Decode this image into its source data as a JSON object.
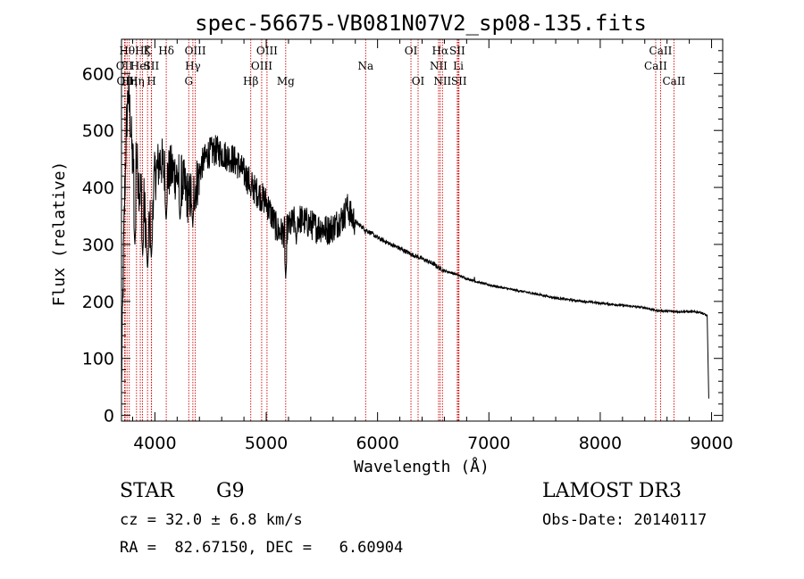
{
  "chart_data": {
    "type": "line",
    "title": "spec-56675-VB081N07V2_sp08-135.fits",
    "xlabel": "Wavelength (Å)",
    "ylabel": "Flux (relative)",
    "xlim": [
      3700,
      9100
    ],
    "ylim": [
      -10,
      660
    ],
    "x_ticks": [
      4000,
      5000,
      6000,
      7000,
      8000,
      9000
    ],
    "y_ticks": [
      0,
      100,
      200,
      300,
      400,
      500,
      600
    ],
    "continuum": [
      [
        3700,
        50
      ],
      [
        3720,
        300
      ],
      [
        3740,
        480
      ],
      [
        3760,
        570
      ],
      [
        3780,
        520
      ],
      [
        3800,
        440
      ],
      [
        3830,
        460
      ],
      [
        3860,
        400
      ],
      [
        3900,
        380
      ],
      [
        3930,
        300
      ],
      [
        3960,
        340
      ],
      [
        4000,
        420
      ],
      [
        4050,
        450
      ],
      [
        4100,
        420
      ],
      [
        4150,
        430
      ],
      [
        4200,
        420
      ],
      [
        4250,
        410
      ],
      [
        4300,
        380
      ],
      [
        4340,
        390
      ],
      [
        4380,
        410
      ],
      [
        4420,
        440
      ],
      [
        4480,
        460
      ],
      [
        4550,
        465
      ],
      [
        4600,
        460
      ],
      [
        4650,
        455
      ],
      [
        4700,
        450
      ],
      [
        4750,
        440
      ],
      [
        4800,
        425
      ],
      [
        4850,
        410
      ],
      [
        4900,
        395
      ],
      [
        4950,
        385
      ],
      [
        5000,
        375
      ],
      [
        5050,
        350
      ],
      [
        5100,
        325
      ],
      [
        5150,
        320
      ],
      [
        5200,
        330
      ],
      [
        5250,
        340
      ],
      [
        5300,
        345
      ],
      [
        5350,
        340
      ],
      [
        5400,
        335
      ],
      [
        5450,
        330
      ],
      [
        5500,
        330
      ],
      [
        5550,
        325
      ],
      [
        5600,
        330
      ],
      [
        5650,
        340
      ],
      [
        5700,
        350
      ],
      [
        5720,
        365
      ],
      [
        5740,
        362
      ],
      [
        5760,
        350
      ],
      [
        5800,
        340
      ],
      [
        5850,
        332
      ],
      [
        5900,
        325
      ],
      [
        6000,
        312
      ],
      [
        6100,
        302
      ],
      [
        6200,
        293
      ],
      [
        6300,
        283
      ],
      [
        6400,
        275
      ],
      [
        6500,
        266
      ],
      [
        6560,
        258
      ],
      [
        6600,
        254
      ],
      [
        6700,
        248
      ],
      [
        6800,
        240
      ],
      [
        6900,
        234
      ],
      [
        7000,
        229
      ],
      [
        7200,
        221
      ],
      [
        7400,
        214
      ],
      [
        7600,
        206
      ],
      [
        7800,
        201
      ],
      [
        8000,
        197
      ],
      [
        8200,
        193
      ],
      [
        8400,
        189
      ],
      [
        8500,
        184
      ],
      [
        8600,
        183
      ],
      [
        8700,
        182
      ],
      [
        8800,
        182
      ],
      [
        8900,
        181
      ],
      [
        8960,
        175
      ],
      [
        8975,
        30
      ]
    ],
    "absorption_dips": [
      [
        3820,
        300
      ],
      [
        3890,
        280
      ],
      [
        3934,
        255
      ],
      [
        3968,
        275
      ],
      [
        4101,
        340
      ],
      [
        4226,
        340
      ],
      [
        4340,
        330
      ],
      [
        4861,
        380
      ],
      [
        5175,
        240
      ],
      [
        5270,
        300
      ],
      [
        5890,
        318
      ]
    ],
    "emission_bumps": [
      [
        5720,
        372
      ],
      [
        6870,
        243
      ]
    ],
    "spectral_lines": [
      {
        "wave": 3727,
        "label": "OII",
        "row": 1
      },
      {
        "wave": 3733,
        "label": "OII",
        "row": 2
      },
      {
        "wave": 3750,
        "label": "Hθ",
        "row": 0
      },
      {
        "wave": 3770,
        "label": "Hη",
        "row": 2
      },
      {
        "wave": 3835,
        "label": "Hη",
        "row": 2
      },
      {
        "wave": 3869,
        "label": "HeI",
        "row": 1
      },
      {
        "wave": 3889,
        "label": "Hζ",
        "row": 0
      },
      {
        "wave": 3934,
        "label": "K",
        "row": 0
      },
      {
        "wave": 3968,
        "label": "SII",
        "row": 1
      },
      {
        "wave": 3970,
        "label": "H",
        "row": 2
      },
      {
        "wave": 4102,
        "label": "Hδ",
        "row": 0
      },
      {
        "wave": 4304,
        "label": "G",
        "row": 2
      },
      {
        "wave": 4341,
        "label": "Hγ",
        "row": 1
      },
      {
        "wave": 4363,
        "label": "OIII",
        "row": 0
      },
      {
        "wave": 4861,
        "label": "Hβ",
        "row": 2
      },
      {
        "wave": 4959,
        "label": "OIII",
        "row": 1
      },
      {
        "wave": 5007,
        "label": "OIII",
        "row": 0
      },
      {
        "wave": 5175,
        "label": "Mg",
        "row": 2
      },
      {
        "wave": 5893,
        "label": "Na",
        "row": 1
      },
      {
        "wave": 6300,
        "label": "OI",
        "row": 0
      },
      {
        "wave": 6364,
        "label": "OI",
        "row": 2
      },
      {
        "wave": 6548,
        "label": "NII",
        "row": 1
      },
      {
        "wave": 6563,
        "label": "Hα",
        "row": 0
      },
      {
        "wave": 6583,
        "label": "NII",
        "row": 2
      },
      {
        "wave": 6716,
        "label": "SII",
        "row": 0
      },
      {
        "wave": 6731,
        "label": "SII",
        "row": 2
      },
      {
        "wave": 6725,
        "label": "Li",
        "row": 1
      },
      {
        "wave": 8498,
        "label": "CaII",
        "row": 1
      },
      {
        "wave": 8542,
        "label": "CaII",
        "row": 0
      },
      {
        "wave": 8662,
        "label": "CaII",
        "row": 2
      }
    ]
  },
  "info": {
    "object_class": "STAR",
    "subclass": "G9",
    "redshift": "cz = 32.0 ± 6.8 km/s",
    "coords": "RA =  82.67150, DEC =   6.60904",
    "survey": "LAMOST DR3",
    "obs_date": "Obs-Date: 20140117"
  },
  "colors": {
    "spectrum": "#000000",
    "line_markers": "#cc0000"
  }
}
